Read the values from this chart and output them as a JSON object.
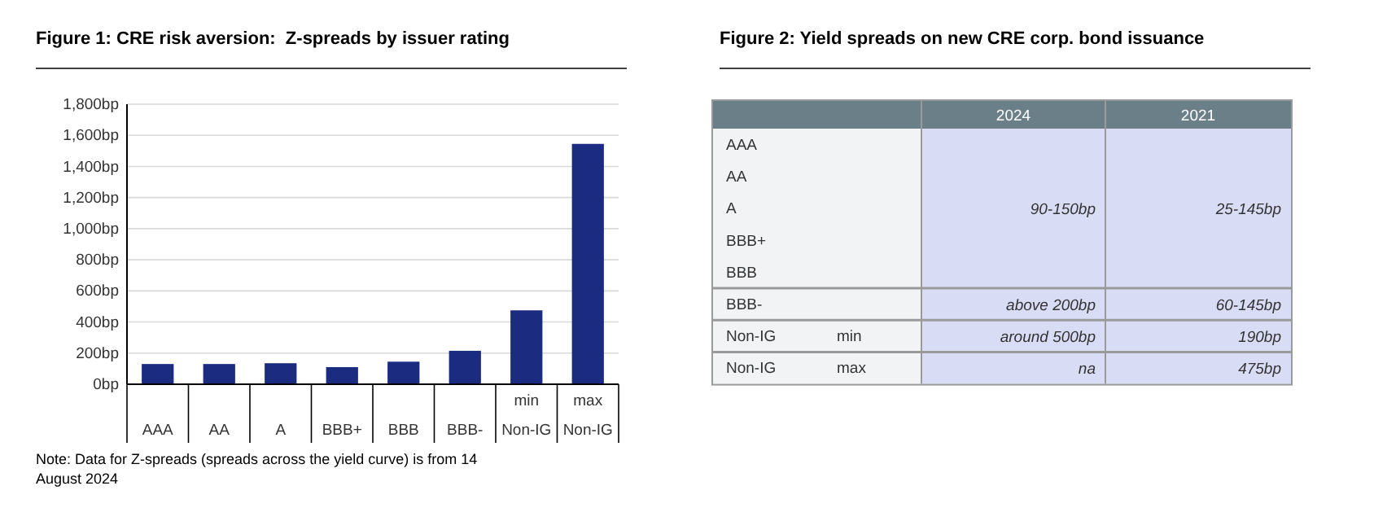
{
  "chart_data": [
    {
      "type": "bar",
      "title": "Figure 1: CRE risk aversion:  Z-spreads by issuer rating",
      "categories": [
        "AAA",
        "AA",
        "A",
        "BBB+",
        "BBB",
        "BBB-",
        "min\nNon-IG",
        "max\nNon-IG"
      ],
      "values": [
        130,
        130,
        135,
        110,
        145,
        215,
        475,
        1545
      ],
      "color": "#1a2b80",
      "ylim": [
        0,
        1800
      ],
      "yticks": [
        {
          "value": 0,
          "label": "0bp"
        },
        {
          "value": 200,
          "label": "200bp"
        },
        {
          "value": 400,
          "label": "400bp"
        },
        {
          "value": 600,
          "label": "600bp"
        },
        {
          "value": 800,
          "label": "800bp"
        },
        {
          "value": 1000,
          "label": "1,000bp"
        },
        {
          "value": 1200,
          "label": "1,200bp"
        },
        {
          "value": 1400,
          "label": "1,400bp"
        },
        {
          "value": 1600,
          "label": "1,600bp"
        },
        {
          "value": 1800,
          "label": "1,800bp"
        }
      ],
      "grid": "y",
      "annotations": [
        "Note: Data for Z-spreads (spreads across the yield curve) is from 14 August 2024"
      ]
    },
    {
      "type": "other",
      "title": "Figure 2: Yield spreads on new CRE corp. bond issuance",
      "categories": [
        "2024",
        "2021"
      ],
      "y_categories": [
        "AAA",
        "AA",
        "A",
        "BBB+",
        "BBB",
        "BBB-",
        "Non-IG",
        "Non-IG"
      ],
      "y2_categories": [
        null,
        null,
        null,
        null,
        null,
        null,
        "min",
        "max"
      ],
      "cell_labels": [
        [
          null,
          null
        ],
        [
          null,
          null
        ],
        [
          "90-150bp",
          "25-145bp"
        ],
        [
          null,
          null
        ],
        [
          null,
          null
        ],
        [
          "above 200bp",
          "60-145bp"
        ],
        [
          "around 500bp",
          "190bp"
        ],
        [
          "na",
          "475bp"
        ]
      ]
    }
  ]
}
